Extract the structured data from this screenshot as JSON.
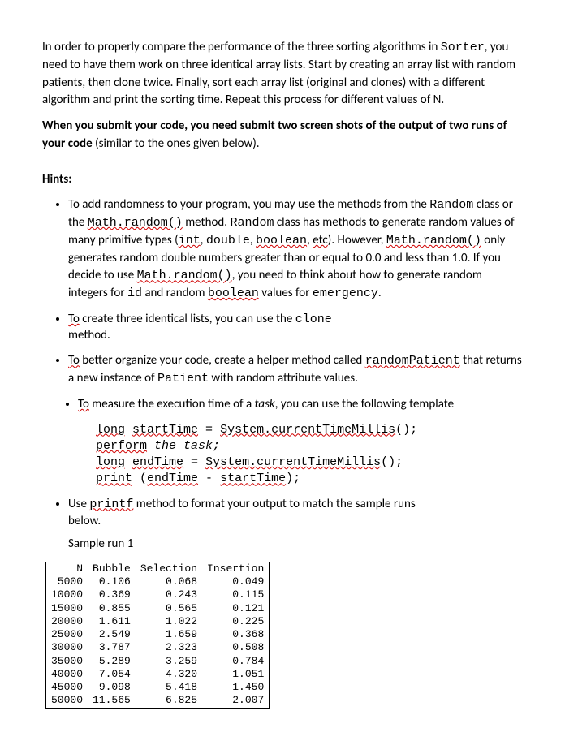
{
  "intro": {
    "p1": {
      "seg1": "In order to properly compare the performance of the three sorting algorithms in ",
      "code1": "Sorter",
      "seg2": ", you need to have them work on three identical array lists. Start by creating an array list with random patients, then clone twice. Finally, sort each array list (original and clones) with a different algorithm and print the sorting time.  Repeat this process for different values of N."
    },
    "p2": {
      "bold": "When you submit your code, you need submit two screen shots of the output of two runs of your code ",
      "rest": "(similar to the ones given below)."
    }
  },
  "hints_label": "Hints:",
  "hints": {
    "h1": {
      "a": "To add randomness to your program, you may use the methods from the ",
      "random_class": "Random",
      "b": " class or the ",
      "math_random": "Math.random()",
      "c": " method. ",
      "random_class2": "Random",
      "d": " class has methods to generate random values of many primitive types (",
      "int": "int",
      "comma1": ", ",
      "double": "double",
      "comma2": ", ",
      "boolean": "boolean",
      "comma3": ", ",
      "etc": "etc",
      "e": ").   However, ",
      "math_random2": "Math.random()",
      "f": " only generates random double numbers greater than or equal to 0.0 and  less than 1.0. If you decide to use ",
      "math_random3": "Math.random()",
      "g": ", you need to think about how to generate random integers for ",
      "id": "id",
      "h": " and random ",
      "boolean2": "boolean",
      "i": " values for ",
      "emergency": "emergency",
      "j": "."
    },
    "h2": {
      "to": "To",
      "a": " create three identical lists, you can use the ",
      "clone": "clone",
      "tail": "method."
    },
    "h3": {
      "to": "To",
      "a": " better organize your code, create a helper method called ",
      "rp": "randomPatient",
      "b": " that returns a new instance of ",
      "patient": "Patient",
      "c": " with random attribute values."
    },
    "h4": {
      "to": "To",
      "a": " measure the execution time of a ",
      "task": "task",
      "b": ", you can use the following template"
    },
    "h5": {
      "a": "Use ",
      "printf": "printf",
      "b": " method to format your output to match the sample runs",
      "tail": "below."
    }
  },
  "codeblock": {
    "l1a": "long",
    "l1b": " ",
    "l1c": "startTime",
    "l1d": " = ",
    "l1e": "System.currentTimeMillis",
    "l1f": "();",
    "l2a": "perform",
    "l2b": " the task;",
    "l3a": "long",
    "l3b": " ",
    "l3c": "endTime",
    "l3d": " = ",
    "l3e": "System.currentTimeMillis",
    "l3f": "();",
    "l4a": "print",
    "l4b": " (",
    "l4c": "endTime",
    "l4d": " - ",
    "l4e": "startTime",
    "l4f": ");"
  },
  "sample_label": "Sample run 1",
  "table": {
    "headers": [
      "N",
      "Bubble",
      "Selection",
      "Insertion"
    ],
    "rows": [
      [
        "5000",
        "0.106",
        "0.068",
        "0.049"
      ],
      [
        "10000",
        "0.369",
        "0.243",
        "0.115"
      ],
      [
        "15000",
        "0.855",
        "0.565",
        "0.121"
      ],
      [
        "20000",
        "1.611",
        "1.022",
        "0.225"
      ],
      [
        "25000",
        "2.549",
        "1.659",
        "0.368"
      ],
      [
        "30000",
        "3.787",
        "2.323",
        "0.508"
      ],
      [
        "35000",
        "5.289",
        "3.259",
        "0.784"
      ],
      [
        "40000",
        "7.054",
        "4.320",
        "1.051"
      ],
      [
        "45000",
        "9.098",
        "5.418",
        "1.450"
      ],
      [
        "50000",
        "11.565",
        "6.825",
        "2.007"
      ]
    ]
  }
}
